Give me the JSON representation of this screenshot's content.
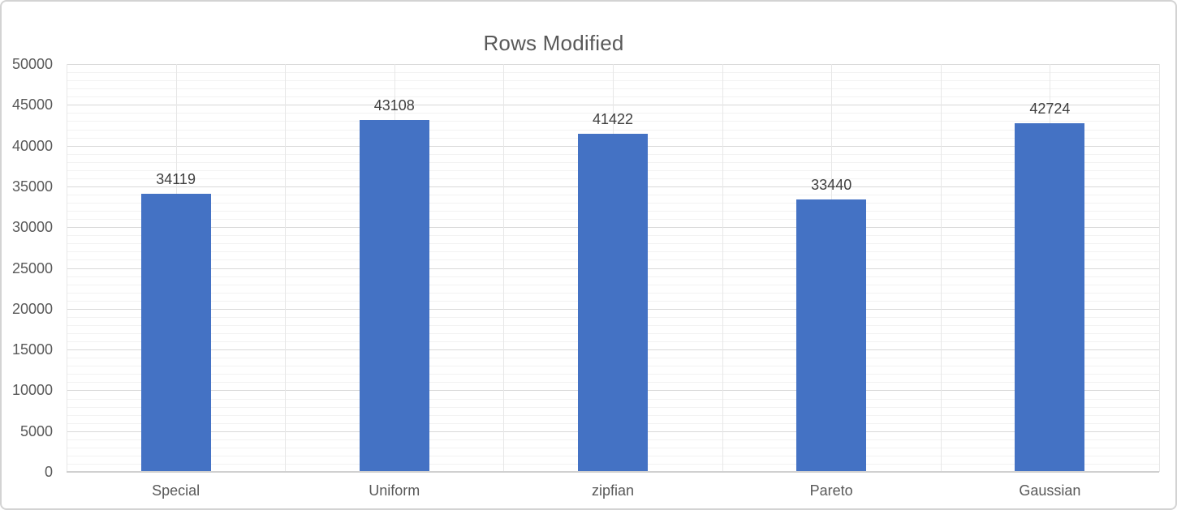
{
  "chart_data": {
    "type": "bar",
    "title": "Rows Modified",
    "categories": [
      "Special",
      "Uniform",
      "zipfian",
      "Pareto",
      "Gaussian"
    ],
    "values": [
      34119,
      43108,
      41422,
      33440,
      42724
    ],
    "data_labels": [
      "34119",
      "43108",
      "41422",
      "33440",
      "42724"
    ],
    "xlabel": "",
    "ylabel": "",
    "ylim": [
      0,
      50000
    ],
    "ytick_step": 5000,
    "ytick_labels": [
      "0",
      "5000",
      "10000",
      "15000",
      "20000",
      "25000",
      "30000",
      "35000",
      "40000",
      "45000",
      "50000"
    ],
    "minor_gridline_step": 1000,
    "grid": "horizontal major + minor, vertical category boundaries and midpoints",
    "legend": "none",
    "colors": {
      "bar": "#4472C4",
      "title_text": "#595959",
      "axis_text": "#595959",
      "data_label_text": "#3F3F3F",
      "major_gridline": "#D9D9D9",
      "minor_gridline": "#F2F2F2",
      "vertical_gridline": "#E7E7E7",
      "axis_line": "#D0D0D0",
      "window_border": "#D3D3D3",
      "background": "#FFFFFF"
    }
  }
}
